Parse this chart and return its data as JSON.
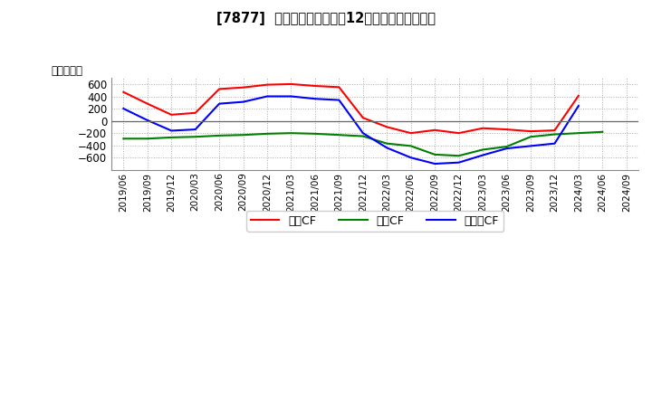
{
  "title": "[7877]  キャッシュフローの12か月移動合計の推移",
  "ylabel": "（百万円）",
  "x_labels": [
    "2019/06",
    "2019/09",
    "2019/12",
    "2020/03",
    "2020/06",
    "2020/09",
    "2020/12",
    "2021/03",
    "2021/06",
    "2021/09",
    "2021/12",
    "2022/03",
    "2022/06",
    "2022/09",
    "2022/12",
    "2023/03",
    "2023/06",
    "2023/09",
    "2023/12",
    "2024/03",
    "2024/06",
    "2024/09"
  ],
  "operating_cf": [
    470,
    280,
    100,
    130,
    520,
    545,
    590,
    600,
    570,
    550,
    50,
    -100,
    -200,
    -150,
    -200,
    -120,
    -140,
    -170,
    -155,
    410,
    null,
    null
  ],
  "investing_cf": [
    -290,
    -290,
    -270,
    -260,
    -240,
    -230,
    -210,
    -200,
    -210,
    -230,
    -250,
    -370,
    -410,
    -550,
    -570,
    -470,
    -420,
    -260,
    -220,
    -200,
    -180,
    null
  ],
  "free_cf": [
    200,
    10,
    -160,
    -140,
    280,
    310,
    400,
    400,
    360,
    340,
    -200,
    -440,
    -600,
    -700,
    -680,
    -560,
    -450,
    -410,
    -370,
    245,
    null,
    null
  ],
  "ylim": [
    -800,
    700
  ],
  "yticks": [
    -600,
    -400,
    -200,
    0,
    200,
    400,
    600
  ],
  "colors": {
    "operating": "#ff0000",
    "investing": "#008000",
    "free": "#0000ff"
  },
  "legend_labels": [
    "営業CF",
    "投資CF",
    "フリーCF"
  ],
  "background_color": "#f5f5f5",
  "plot_bg": "#f0f0f0"
}
